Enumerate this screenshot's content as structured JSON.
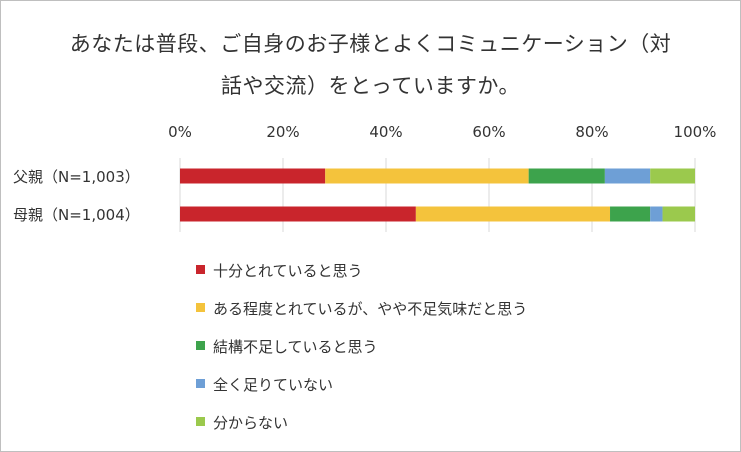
{
  "chart_data": {
    "type": "bar",
    "orientation": "horizontal",
    "stacked": true,
    "title_lines": [
      "あなたは普段、ご自身のお子様とよくコミュニケーション（対",
      "話や交流）をとっていますか。"
    ],
    "categories": [
      "父親（N=1,003）",
      "母親（N=1,004）"
    ],
    "x_ticks": [
      "0%",
      "20%",
      "40%",
      "60%",
      "80%",
      "100%"
    ],
    "xlim": [
      0,
      100
    ],
    "grid": true,
    "legend_position": "bottom",
    "series": [
      {
        "name": "十分とれていると思う",
        "color": "#c9252c",
        "values": [
          28.2,
          45.8
        ]
      },
      {
        "name": "ある程度とれているが、やや不足気味だと思う",
        "color": "#f4c33c",
        "values": [
          39.5,
          37.7
        ]
      },
      {
        "name": "結構不足していると思う",
        "color": "#3da34c",
        "values": [
          14.8,
          7.8
        ]
      },
      {
        "name": "全く足りていない",
        "color": "#6e9fd6",
        "values": [
          8.8,
          2.4
        ]
      },
      {
        "name": "分からない",
        "color": "#9bc94d",
        "values": [
          8.7,
          6.3
        ]
      }
    ]
  }
}
